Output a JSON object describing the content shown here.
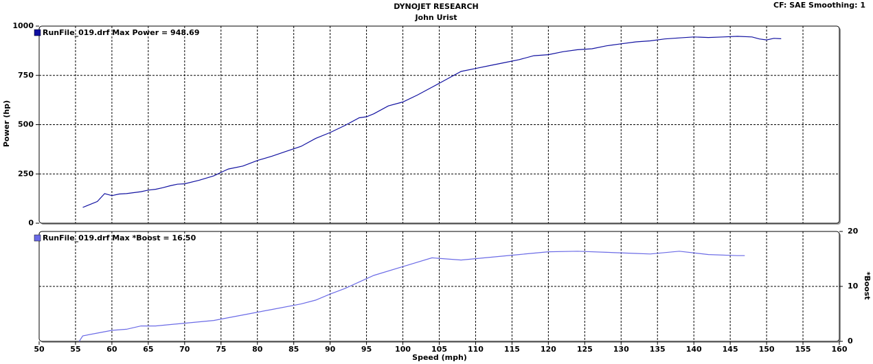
{
  "header": {
    "title": "DYNOJET RESEARCH",
    "subtitle": "John Urist",
    "settings": "CF: SAE  Smoothing: 1"
  },
  "chart_data": [
    {
      "type": "line",
      "ylabel": "Power (hp)",
      "ylim": [
        0,
        1000
      ],
      "yticks": [
        0,
        250,
        500,
        750,
        1000
      ],
      "yaxis_position": "left",
      "grid": true,
      "series": [
        {
          "name": "RunFile_019.drf Max Power = 948.69",
          "color": "#1010a0",
          "x": [
            56,
            57,
            58,
            59,
            60,
            61,
            62,
            63,
            64,
            65,
            66,
            67,
            68,
            69,
            70,
            72,
            74,
            75,
            76,
            78,
            80,
            82,
            84,
            86,
            88,
            90,
            92,
            94,
            95,
            96,
            98,
            100,
            102,
            104,
            106,
            108,
            110,
            112,
            114,
            116,
            118,
            120,
            122,
            124,
            126,
            128,
            130,
            132,
            134,
            136,
            138,
            140,
            142,
            144,
            146,
            148,
            149,
            150,
            151,
            152
          ],
          "values": [
            80,
            95,
            110,
            150,
            140,
            148,
            150,
            155,
            160,
            168,
            172,
            180,
            190,
            198,
            200,
            218,
            240,
            258,
            275,
            290,
            318,
            340,
            365,
            390,
            430,
            460,
            495,
            535,
            540,
            555,
            595,
            615,
            650,
            690,
            730,
            770,
            785,
            800,
            815,
            830,
            850,
            855,
            870,
            880,
            885,
            900,
            910,
            920,
            925,
            935,
            940,
            945,
            942,
            945,
            948,
            945,
            935,
            930,
            938,
            936
          ]
        }
      ]
    },
    {
      "type": "line",
      "ylabel": "*Boost",
      "xlabel": "Speed (mph)",
      "ylim": [
        0,
        20
      ],
      "yticks": [
        0,
        10,
        20
      ],
      "yaxis_position": "right",
      "grid": true,
      "xlim": [
        50,
        160
      ],
      "xticks": [
        50,
        55,
        60,
        65,
        70,
        75,
        80,
        85,
        90,
        95,
        100,
        105,
        110,
        115,
        120,
        125,
        130,
        135,
        140,
        145,
        150,
        155,
        160
      ],
      "series": [
        {
          "name": "RunFile_019.drf Max *Boost = 16.50",
          "color": "#6a6ae6",
          "x": [
            55.5,
            56,
            58,
            60,
            62,
            64,
            66,
            70,
            74,
            78,
            82,
            86,
            88,
            90,
            92,
            94,
            96,
            100,
            104,
            108,
            112,
            116,
            120,
            124,
            128,
            132,
            134,
            138,
            142,
            146,
            147
          ],
          "values": [
            0,
            1,
            1.5,
            2,
            2.2,
            2.8,
            2.8,
            3.3,
            3.8,
            4.8,
            5.8,
            6.8,
            7.5,
            8.6,
            9.6,
            10.8,
            12.0,
            13.6,
            15.2,
            14.8,
            15.3,
            15.8,
            16.3,
            16.4,
            16.2,
            16.0,
            15.9,
            16.4,
            15.8,
            15.6,
            15.6
          ]
        }
      ]
    }
  ]
}
